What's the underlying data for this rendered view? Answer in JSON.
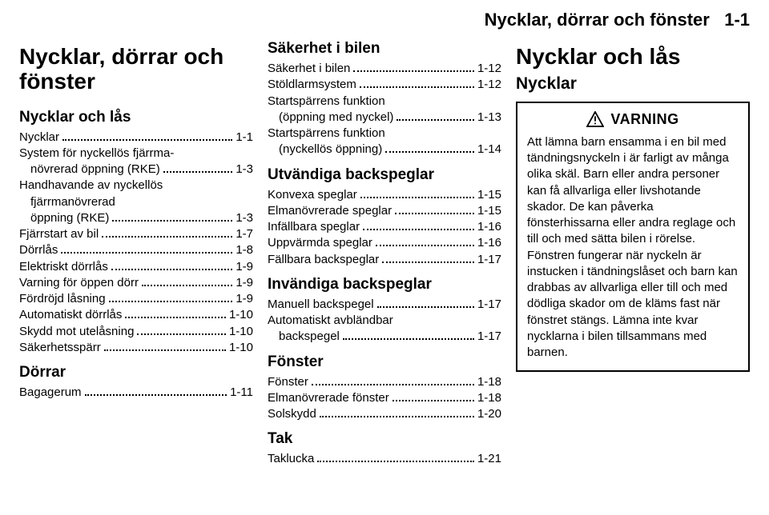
{
  "header": {
    "title": "Nycklar, dörrar och fönster",
    "page": "1-1"
  },
  "col1": {
    "big_title": "Nycklar, dörrar och fönster",
    "sec1": {
      "title": "Nycklar och lås",
      "items": [
        {
          "label": "Nycklar",
          "page": "1-1"
        },
        {
          "label_lines": [
            "System för nyckellös fjärrma-",
            "növrerad öppning (RKE)"
          ],
          "page": "1-3"
        },
        {
          "label_lines": [
            "Handhavande av nyckellös",
            "fjärrmanövrerad",
            "öppning (RKE)"
          ],
          "page": "1-3"
        },
        {
          "label": "Fjärrstart av bil",
          "page": "1-7"
        },
        {
          "label": "Dörrlås",
          "page": "1-8"
        },
        {
          "label": "Elektriskt dörrlås",
          "page": "1-9"
        },
        {
          "label": "Varning för öppen dörr",
          "page": "1-9"
        },
        {
          "label": "Fördröjd låsning",
          "page": "1-9"
        },
        {
          "label": "Automatiskt dörrlås",
          "page": "1-10"
        },
        {
          "label": "Skydd mot utelåsning",
          "page": "1-10"
        },
        {
          "label": "Säkerhetsspärr",
          "page": "1-10"
        }
      ]
    },
    "sec2": {
      "title": "Dörrar",
      "items": [
        {
          "label": "Bagagerum",
          "page": "1-11"
        }
      ]
    }
  },
  "col2": {
    "sec1": {
      "title": "Säkerhet i bilen",
      "items": [
        {
          "label": "Säkerhet i bilen",
          "page": "1-12"
        },
        {
          "label": "Stöldlarmsystem",
          "page": "1-12"
        },
        {
          "label_lines": [
            "Startspärrens funktion",
            "(öppning med nyckel)"
          ],
          "page": "1-13"
        },
        {
          "label_lines": [
            "Startspärrens funktion",
            "(nyckellös öppning)"
          ],
          "page": "1-14"
        }
      ]
    },
    "sec2": {
      "title": "Utvändiga backspeglar",
      "items": [
        {
          "label": "Konvexa speglar",
          "page": "1-15"
        },
        {
          "label": "Elmanövrerade speglar",
          "page": "1-15"
        },
        {
          "label": "Infällbara speglar",
          "page": "1-16"
        },
        {
          "label": "Uppvärmda speglar",
          "page": "1-16"
        },
        {
          "label": "Fällbara backspeglar",
          "page": "1-17"
        }
      ]
    },
    "sec3": {
      "title": "Invändiga backspeglar",
      "items": [
        {
          "label": "Manuell backspegel",
          "page": "1-17"
        },
        {
          "label_lines": [
            "Automatiskt avbländbar",
            "backspegel"
          ],
          "page": "1-17"
        }
      ]
    },
    "sec4": {
      "title": "Fönster",
      "items": [
        {
          "label": "Fönster",
          "page": "1-18"
        },
        {
          "label": "Elmanövrerade fönster",
          "page": "1-18"
        },
        {
          "label": "Solskydd",
          "page": "1-20"
        }
      ]
    },
    "sec5": {
      "title": "Tak",
      "items": [
        {
          "label": "Taklucka",
          "page": "1-21"
        }
      ]
    }
  },
  "col3": {
    "big_title": "Nycklar och lås",
    "sub_title": "Nycklar",
    "warning": {
      "label": "VARNING",
      "body": "Att lämna barn ensamma i en bil med tändningsnyckeln i är farligt av många olika skäl. Barn eller andra personer kan få allvarliga eller livshotande skador. De kan påverka fönsterhissarna eller andra reglage och till och med sätta bilen i rörelse. Fönstren fungerar när nyckeln är instucken i tändningslåset och barn kan drabbas av allvarliga eller till och med dödliga skador om de kläms fast när fönstret stängs. Lämna inte kvar nycklarna i bilen tillsammans med barnen."
    }
  }
}
